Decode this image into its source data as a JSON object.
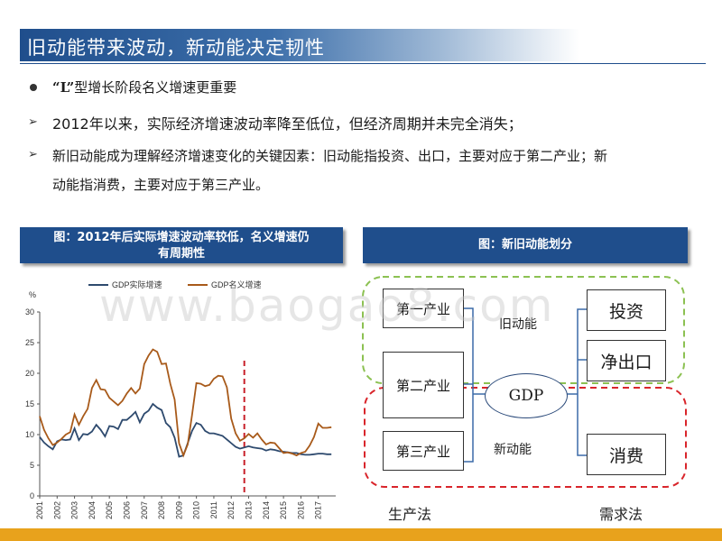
{
  "slide": {
    "title": "旧动能带来波动，新动能决定韧性",
    "bullets": {
      "b1_quote": "“L”",
      "b1_rest": "型增长阶段名义增速更重要",
      "b2": "2012年以来，实际经济增速波动率降至低位，但经济周期并未完全消失；",
      "b3_line1": "新旧动能成为理解经济增速变化的关键因素：旧动能指投资、出口，主要对应于第二产业；新",
      "b3_line2": "动能指消费，主要对应于第三产业。"
    },
    "arrow_glyph": "➢"
  },
  "chart_header": {
    "line1": "图：2012年后实际增速波动率较低，名义增速仍",
    "line2": "有周期性"
  },
  "diagram_header": "图：新旧动能划分",
  "chart_data": {
    "type": "line",
    "ylabel": "%",
    "ylim": [
      0,
      30
    ],
    "yticks": [
      0,
      5,
      10,
      15,
      20,
      25,
      30
    ],
    "xlim": [
      2001,
      2018
    ],
    "xtick_labels": [
      "2001",
      "2002",
      "2003",
      "2004",
      "2005",
      "2006",
      "2007",
      "2008",
      "2009",
      "2010",
      "2011",
      "2012",
      "2013",
      "2014",
      "2015",
      "2016",
      "2017"
    ],
    "vline_x": 2012.75,
    "series": [
      {
        "name": "GDP实际增速",
        "color": "#2e4a6e",
        "points": [
          [
            2001.0,
            9.6
          ],
          [
            2001.25,
            8.7
          ],
          [
            2001.5,
            8.1
          ],
          [
            2001.75,
            7.6
          ],
          [
            2002.0,
            8.9
          ],
          [
            2002.25,
            9.2
          ],
          [
            2002.5,
            9.1
          ],
          [
            2002.75,
            9.2
          ],
          [
            2003.0,
            11.0
          ],
          [
            2003.25,
            9.1
          ],
          [
            2003.5,
            10.1
          ],
          [
            2003.75,
            10.0
          ],
          [
            2004.0,
            10.5
          ],
          [
            2004.25,
            11.6
          ],
          [
            2004.5,
            10.8
          ],
          [
            2004.75,
            9.7
          ],
          [
            2005.0,
            11.4
          ],
          [
            2005.25,
            11.3
          ],
          [
            2005.5,
            10.9
          ],
          [
            2005.75,
            12.4
          ],
          [
            2006.0,
            12.4
          ],
          [
            2006.25,
            13.0
          ],
          [
            2006.5,
            13.7
          ],
          [
            2006.75,
            12.0
          ],
          [
            2007.0,
            13.4
          ],
          [
            2007.25,
            13.9
          ],
          [
            2007.5,
            15.0
          ],
          [
            2007.75,
            14.4
          ],
          [
            2008.0,
            14.0
          ],
          [
            2008.25,
            11.9
          ],
          [
            2008.5,
            11.2
          ],
          [
            2008.75,
            9.5
          ],
          [
            2009.0,
            6.4
          ],
          [
            2009.25,
            6.6
          ],
          [
            2009.5,
            8.6
          ],
          [
            2009.75,
            10.6
          ],
          [
            2010.0,
            11.9
          ],
          [
            2010.25,
            11.6
          ],
          [
            2010.5,
            10.6
          ],
          [
            2010.75,
            10.2
          ],
          [
            2011.0,
            10.2
          ],
          [
            2011.25,
            10.0
          ],
          [
            2011.5,
            9.8
          ],
          [
            2011.75,
            9.2
          ],
          [
            2012.0,
            8.6
          ],
          [
            2012.25,
            8.0
          ],
          [
            2012.5,
            7.7
          ],
          [
            2012.75,
            7.9
          ],
          [
            2013.0,
            8.1
          ],
          [
            2013.25,
            7.9
          ],
          [
            2013.5,
            7.8
          ],
          [
            2013.75,
            7.7
          ],
          [
            2014.0,
            7.4
          ],
          [
            2014.25,
            7.6
          ],
          [
            2014.5,
            7.5
          ],
          [
            2014.75,
            7.3
          ],
          [
            2015.0,
            7.2
          ],
          [
            2015.25,
            7.1
          ],
          [
            2015.5,
            7.0
          ],
          [
            2015.75,
            7.0
          ],
          [
            2016.0,
            6.8
          ],
          [
            2016.25,
            6.7
          ],
          [
            2016.5,
            6.7
          ],
          [
            2016.75,
            6.8
          ],
          [
            2017.0,
            6.9
          ],
          [
            2017.25,
            6.9
          ],
          [
            2017.5,
            6.8
          ],
          [
            2017.75,
            6.8
          ]
        ]
      },
      {
        "name": "GDP名义增速",
        "color": "#a85a1a",
        "points": [
          [
            2001.0,
            13.0
          ],
          [
            2001.25,
            10.8
          ],
          [
            2001.5,
            9.4
          ],
          [
            2001.75,
            8.3
          ],
          [
            2002.0,
            8.7
          ],
          [
            2002.25,
            9.3
          ],
          [
            2002.5,
            10.0
          ],
          [
            2002.75,
            10.4
          ],
          [
            2003.0,
            13.3
          ],
          [
            2003.25,
            11.6
          ],
          [
            2003.5,
            13.0
          ],
          [
            2003.75,
            14.2
          ],
          [
            2004.0,
            17.6
          ],
          [
            2004.25,
            18.9
          ],
          [
            2004.5,
            17.4
          ],
          [
            2004.75,
            17.3
          ],
          [
            2005.0,
            16.0
          ],
          [
            2005.25,
            15.4
          ],
          [
            2005.5,
            14.8
          ],
          [
            2005.75,
            15.5
          ],
          [
            2006.0,
            16.7
          ],
          [
            2006.25,
            17.6
          ],
          [
            2006.5,
            16.7
          ],
          [
            2006.75,
            17.5
          ],
          [
            2007.0,
            21.5
          ],
          [
            2007.25,
            22.9
          ],
          [
            2007.5,
            23.9
          ],
          [
            2007.75,
            23.5
          ],
          [
            2008.0,
            21.5
          ],
          [
            2008.25,
            21.6
          ],
          [
            2008.5,
            18.3
          ],
          [
            2008.75,
            15.7
          ],
          [
            2009.0,
            8.6
          ],
          [
            2009.25,
            6.6
          ],
          [
            2009.5,
            8.4
          ],
          [
            2009.75,
            13.2
          ],
          [
            2010.0,
            18.4
          ],
          [
            2010.25,
            18.3
          ],
          [
            2010.5,
            17.9
          ],
          [
            2010.75,
            18.1
          ],
          [
            2011.0,
            19.1
          ],
          [
            2011.25,
            19.6
          ],
          [
            2011.5,
            19.5
          ],
          [
            2011.75,
            17.7
          ],
          [
            2012.0,
            12.6
          ],
          [
            2012.25,
            10.2
          ],
          [
            2012.5,
            9.0
          ],
          [
            2012.75,
            9.4
          ],
          [
            2013.0,
            10.1
          ],
          [
            2013.25,
            9.5
          ],
          [
            2013.5,
            10.2
          ],
          [
            2013.75,
            9.2
          ],
          [
            2014.0,
            8.4
          ],
          [
            2014.25,
            8.7
          ],
          [
            2014.5,
            8.6
          ],
          [
            2014.75,
            7.8
          ],
          [
            2015.0,
            7.0
          ],
          [
            2015.25,
            7.1
          ],
          [
            2015.5,
            6.9
          ],
          [
            2015.75,
            6.6
          ],
          [
            2016.0,
            7.0
          ],
          [
            2016.25,
            7.2
          ],
          [
            2016.5,
            8.2
          ],
          [
            2016.75,
            9.6
          ],
          [
            2017.0,
            11.8
          ],
          [
            2017.25,
            11.1
          ],
          [
            2017.5,
            11.1
          ],
          [
            2017.75,
            11.2
          ]
        ]
      }
    ]
  },
  "diagram": {
    "left_boxes": [
      "第一产业",
      "第二产业",
      "第三产业"
    ],
    "right_boxes": [
      "投资",
      "净出口",
      "消费"
    ],
    "center": "GDP",
    "old_label": "旧动能",
    "new_label": "新动能",
    "left_method": "生产法",
    "right_method": "需求法",
    "old_color": "#8cc152",
    "new_color": "#d9252b",
    "line_color": "#3b6aa8"
  },
  "watermark": "www.baogao8.com"
}
